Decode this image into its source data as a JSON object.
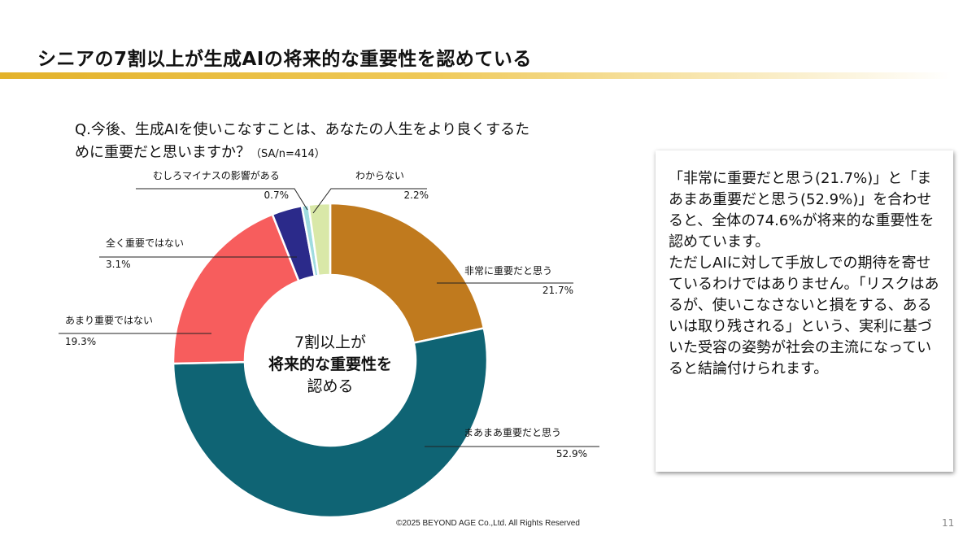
{
  "slide": {
    "title": "シニアの7割以上が生成AIの将来的な重要性を認めている",
    "question": "Q.今後、生成AIを使いこなすことは、あなたの人生をより良くするた",
    "question_line2": "めに重要だと思いますか？",
    "question_meta": "（SA/n=414）",
    "center_line1": "7割以上が",
    "center_line2": "将来的な重要性を",
    "center_line3": "認める",
    "box_text": "「非常に重要だと思う(21.7%)」と「まあまあ重要だと思う(52.9%)」を合わせると、全体の74.6%が将来的な重要性を認めています。\nただしAIに対して手放しでの期待を寄せているわけではありません。「リスクはあるが、使いこなさないと損をする、あるいは取り残される」という、実利に基づいた受容の姿勢が社会の主流になっていると結論付けられます。",
    "footer": "©2025 BEYOND AGE Co.,Ltd. All Rights Reserved",
    "page_number": "11"
  },
  "chart_data": {
    "type": "pie",
    "variant": "donut",
    "start": "top, clockwise",
    "unit": "%",
    "categories": [
      "非常に重要だと思う",
      "まあまあ重要だと思う",
      "あまり重要ではない",
      "全く重要ではない",
      "むしろマイナスの影響がある",
      "わからない"
    ],
    "values": [
      21.7,
      52.9,
      19.3,
      3.1,
      0.7,
      2.2
    ],
    "value_labels": [
      "21.7%",
      "52.9%",
      "19.3%",
      "3.1%",
      "0.7%",
      "2.2%"
    ],
    "colors": [
      "#c07a1e",
      "#0f6474",
      "#f75d5d",
      "#2b2a8a",
      "#9fdcdf",
      "#d9e8a8"
    ]
  }
}
